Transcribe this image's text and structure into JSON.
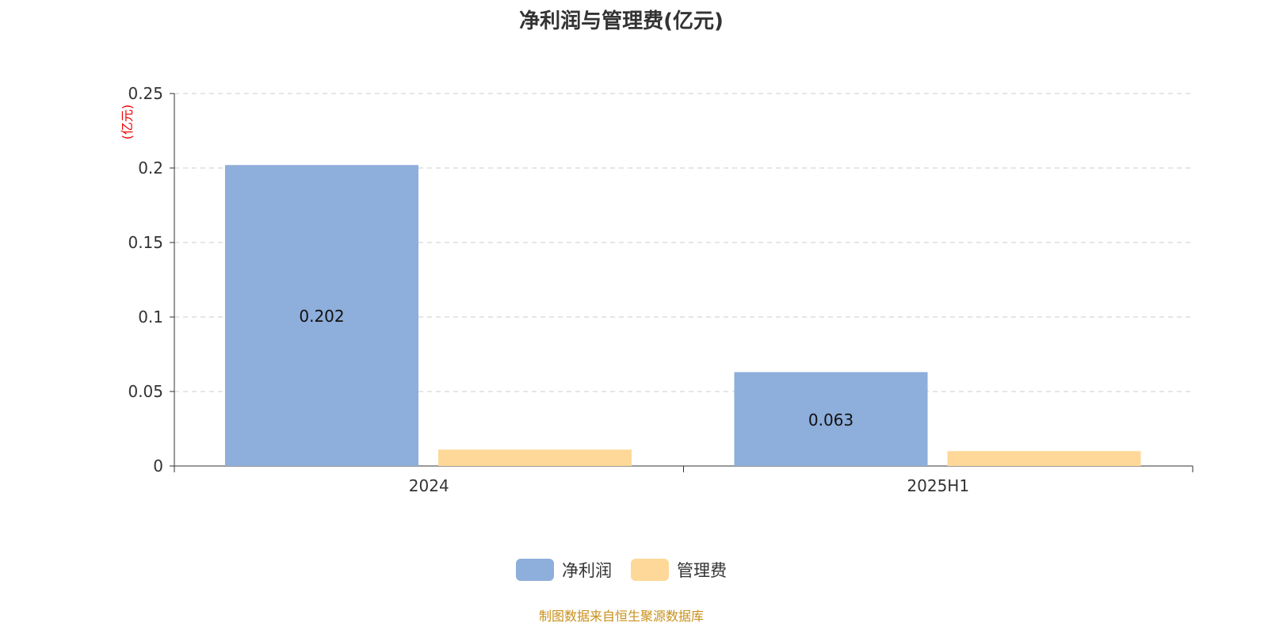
{
  "chart_data": {
    "type": "bar",
    "title": "净利润与管理费(亿元)",
    "ylabel": "(亿元)",
    "xlabel": "",
    "categories": [
      "2024",
      "2025H1"
    ],
    "series": [
      {
        "name": "净利润",
        "values": [
          0.202,
          0.063
        ],
        "color": "#8eaedb",
        "labels": [
          "0.202",
          "0.063"
        ]
      },
      {
        "name": "管理费",
        "values": [
          0.011,
          0.01
        ],
        "color": "#fed898",
        "labels": [
          "",
          ""
        ]
      }
    ],
    "ylim": [
      0,
      0.25
    ],
    "yticks": [
      "0",
      "0.05",
      "0.1",
      "0.15",
      "0.2",
      "0.25"
    ],
    "grid": true,
    "legend": "bottom"
  },
  "source": "制图数据来自恒生聚源数据库"
}
